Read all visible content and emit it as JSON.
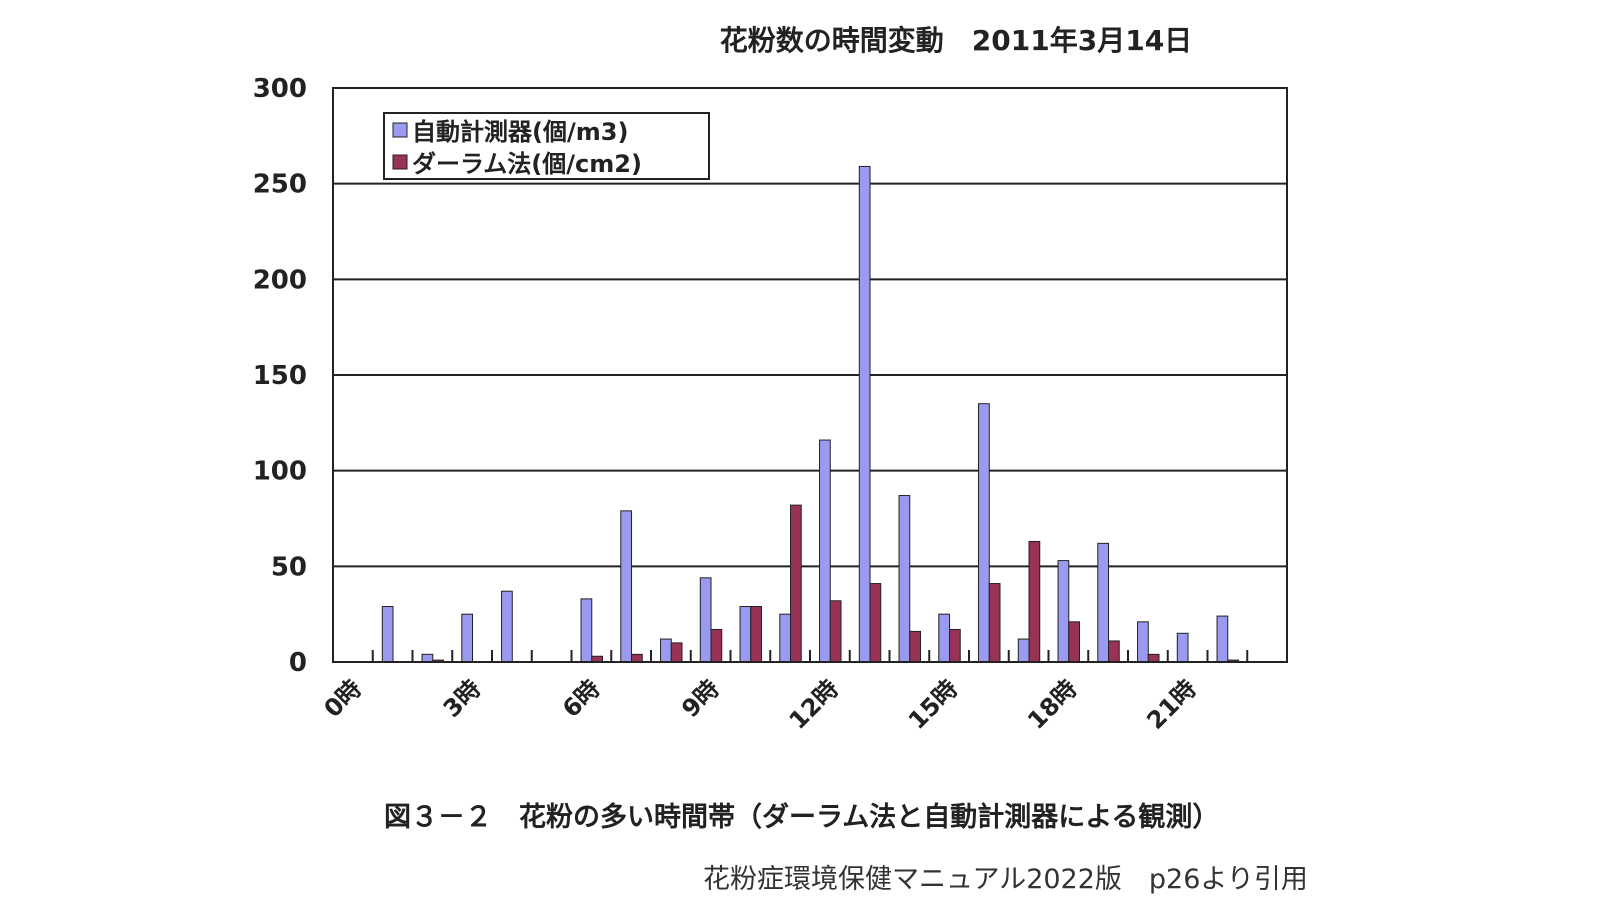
{
  "chart_data": {
    "type": "bar",
    "title": "花粉数の時間変動　2011年3月14日",
    "categories": [
      "0時",
      "1時",
      "2時",
      "3時",
      "4時",
      "5時",
      "6時",
      "7時",
      "8時",
      "9時",
      "10時",
      "11時",
      "12時",
      "13時",
      "14時",
      "15時",
      "16時",
      "17時",
      "18時",
      "19時",
      "20時",
      "21時",
      "22時",
      "23時"
    ],
    "tick_labels": [
      "0時",
      "",
      "",
      "3時",
      "",
      "",
      "6時",
      "",
      "",
      "9時",
      "",
      "",
      "12時",
      "",
      "",
      "15時",
      "",
      "",
      "18時",
      "",
      "",
      "21時",
      "",
      ""
    ],
    "series": [
      {
        "name": "自動計測器(個/m3)",
        "color": "#9a9af0",
        "values": [
          0,
          29,
          4,
          25,
          37,
          0,
          33,
          79,
          12,
          44,
          29,
          25,
          116,
          259,
          87,
          25,
          135,
          12,
          53,
          62,
          21,
          15,
          24,
          0
        ]
      },
      {
        "name": "ダーラム法(個/cm2)",
        "color": "#993355",
        "values": [
          0,
          0,
          1,
          0,
          0,
          0,
          3,
          4,
          10,
          17,
          29,
          82,
          32,
          41,
          16,
          17,
          41,
          63,
          21,
          11,
          4,
          0,
          1,
          0
        ]
      }
    ],
    "ylim": [
      0,
      300
    ],
    "yticks": [
      0,
      50,
      100,
      150,
      200,
      250,
      300
    ],
    "grid": true,
    "legend": "top-left",
    "xlabel": "",
    "ylabel": ""
  },
  "caption": "図３－２　花粉の多い時間帯（ダーラム法と自動計測器による観測）",
  "source": "花粉症環境保健マニュアル2022版　p26より引用"
}
